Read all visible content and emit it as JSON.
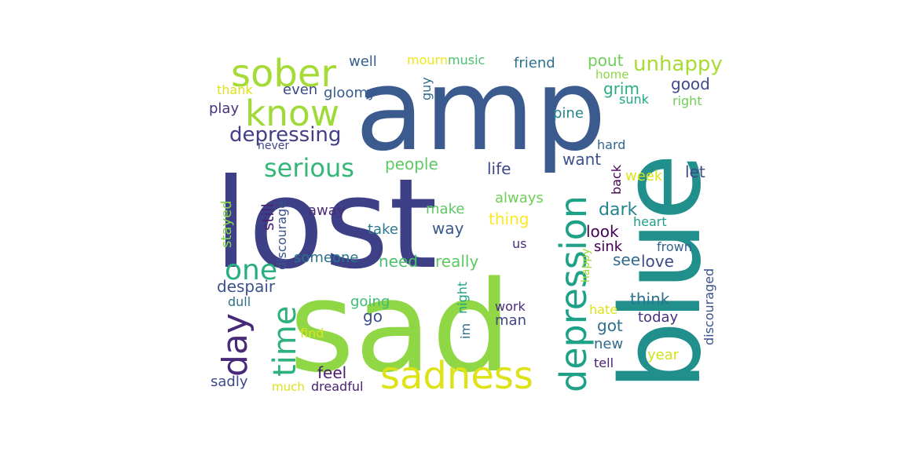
{
  "words": [
    {
      "text": "amp",
      "color": "#3b5a8e"
    },
    {
      "text": "lost",
      "color": "#3d4086"
    },
    {
      "text": "sad",
      "color": "#8fd744"
    },
    {
      "text": "blue",
      "color": "#21908d"
    },
    {
      "text": "sadness",
      "color": "#dde318"
    },
    {
      "text": "depression",
      "color": "#1fa187"
    },
    {
      "text": "sober",
      "color": "#a5db36"
    },
    {
      "text": "know",
      "color": "#a0da39"
    },
    {
      "text": "serious",
      "color": "#35b779"
    },
    {
      "text": "depressing",
      "color": "#433e85"
    },
    {
      "text": "day",
      "color": "#482878"
    },
    {
      "text": "time",
      "color": "#2db27d"
    },
    {
      "text": "one",
      "color": "#29af7f"
    },
    {
      "text": "unhappy",
      "color": "#a8db34"
    },
    {
      "text": "well",
      "color": "#355f8d"
    },
    {
      "text": "mourn",
      "color": "#f1e51d"
    },
    {
      "text": "music",
      "color": "#4ac16d"
    },
    {
      "text": "friend",
      "color": "#2c728e"
    },
    {
      "text": "pout",
      "color": "#6ece58"
    },
    {
      "text": "home",
      "color": "#8bd646"
    },
    {
      "text": "thank",
      "color": "#dde318"
    },
    {
      "text": "even",
      "color": "#3e4989"
    },
    {
      "text": "gloomy",
      "color": "#365c8d"
    },
    {
      "text": "guy",
      "color": "#2f6c8e"
    },
    {
      "text": "grim",
      "color": "#27ad81"
    },
    {
      "text": "good",
      "color": "#3e4a89"
    },
    {
      "text": "sunk",
      "color": "#21a585"
    },
    {
      "text": "right",
      "color": "#6ece58"
    },
    {
      "text": "play",
      "color": "#46327e"
    },
    {
      "text": "pine",
      "color": "#25848e"
    },
    {
      "text": "never",
      "color": "#3f4788"
    },
    {
      "text": "hard",
      "color": "#31678e"
    },
    {
      "text": "people",
      "color": "#5ec962"
    },
    {
      "text": "life",
      "color": "#3f4788"
    },
    {
      "text": "want",
      "color": "#3b518b"
    },
    {
      "text": "week",
      "color": "#dde318"
    },
    {
      "text": "let",
      "color": "#3f4788"
    },
    {
      "text": "stayed",
      "color": "#86d549"
    },
    {
      "text": "still",
      "color": "#482475"
    },
    {
      "text": "discourage",
      "color": "#3b528b"
    },
    {
      "text": "away",
      "color": "#472d7b"
    },
    {
      "text": "always",
      "color": "#6ece58"
    },
    {
      "text": "make",
      "color": "#5ec962"
    },
    {
      "text": "thing",
      "color": "#fde725"
    },
    {
      "text": "back",
      "color": "#440154"
    },
    {
      "text": "dark",
      "color": "#25838e"
    },
    {
      "text": "heart",
      "color": "#1f9e89"
    },
    {
      "text": "take",
      "color": "#2a788e"
    },
    {
      "text": "way",
      "color": "#38598c"
    },
    {
      "text": "look",
      "color": "#440154"
    },
    {
      "text": "someone",
      "color": "#2c728e"
    },
    {
      "text": "us",
      "color": "#472c7a"
    },
    {
      "text": "need",
      "color": "#4ac16d"
    },
    {
      "text": "really",
      "color": "#5ec962"
    },
    {
      "text": "sink",
      "color": "#440154"
    },
    {
      "text": "see",
      "color": "#31688e"
    },
    {
      "text": "love",
      "color": "#3e4989"
    },
    {
      "text": "frown",
      "color": "#33628d"
    },
    {
      "text": "discouraged",
      "color": "#3b528b"
    },
    {
      "text": "despair",
      "color": "#3b528b"
    },
    {
      "text": "happy",
      "color": "#a0da39"
    },
    {
      "text": "night",
      "color": "#1fa188"
    },
    {
      "text": "dull",
      "color": "#2c728e"
    },
    {
      "text": "going",
      "color": "#3dbc74"
    },
    {
      "text": "work",
      "color": "#482878"
    },
    {
      "text": "think",
      "color": "#2c728e"
    },
    {
      "text": "hate",
      "color": "#dde318"
    },
    {
      "text": "go",
      "color": "#3b518b"
    },
    {
      "text": "man",
      "color": "#414487"
    },
    {
      "text": "got",
      "color": "#2e6e8e"
    },
    {
      "text": "today",
      "color": "#46327e"
    },
    {
      "text": "im",
      "color": "#2e6e8e"
    },
    {
      "text": "find",
      "color": "#dde318"
    },
    {
      "text": "new",
      "color": "#306a8e"
    },
    {
      "text": "year",
      "color": "#d2e21b"
    },
    {
      "text": "feel",
      "color": "#481b6d"
    },
    {
      "text": "tell",
      "color": "#482173"
    },
    {
      "text": "sadly",
      "color": "#3e4a89"
    },
    {
      "text": "much",
      "color": "#dde318"
    },
    {
      "text": "dreadful",
      "color": "#482173"
    }
  ]
}
